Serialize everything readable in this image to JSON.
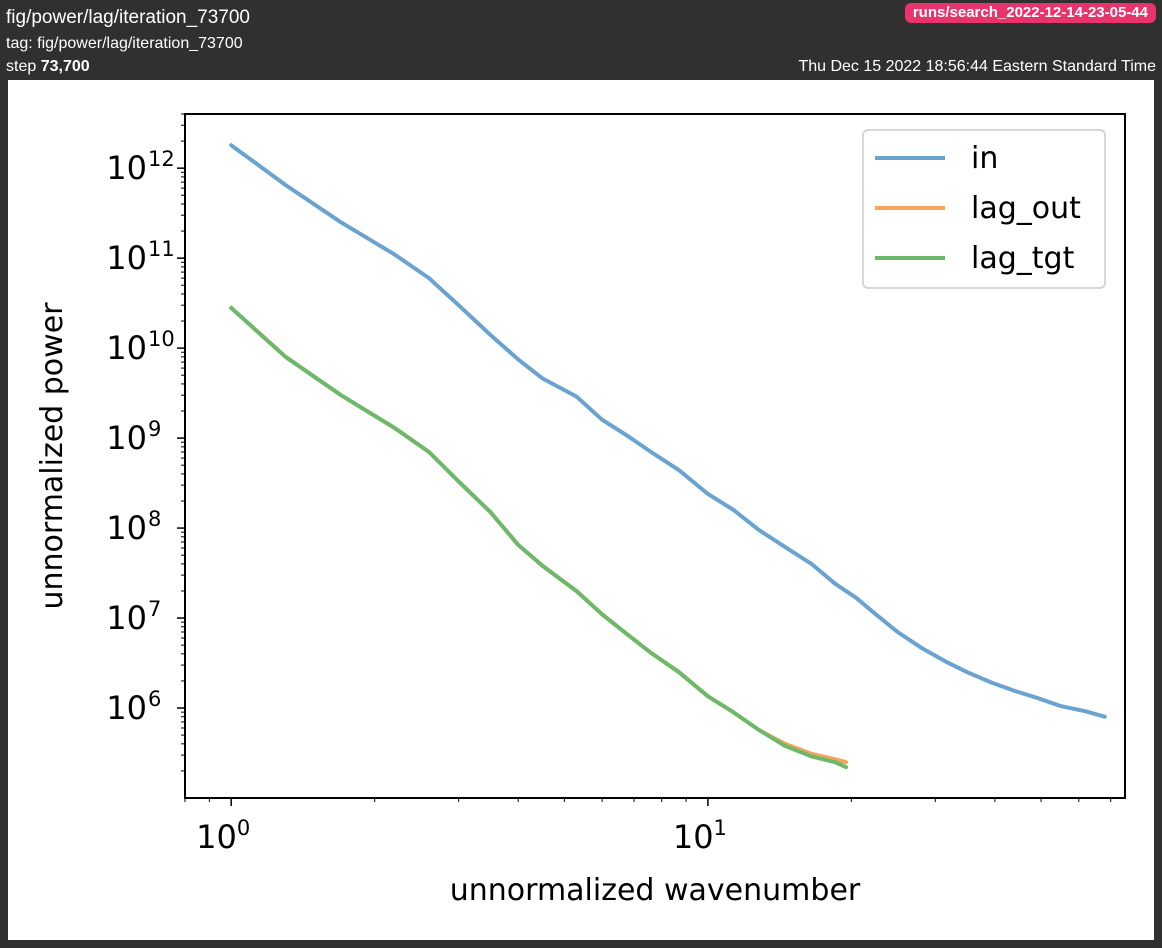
{
  "header": {
    "title": "fig/power/lag/iteration_73700",
    "tag_label": "tag:",
    "tag_value": "fig/power/lag/iteration_73700",
    "step_label": "step",
    "step_value": "73,700",
    "run_name": "runs/search_2022-12-14-23-05-44",
    "timestamp": "Thu Dec 15 2022 18:56:44 Eastern Standard Time"
  },
  "colors": {
    "in": "#6aa3cf",
    "lag_out": "#f5a45a",
    "lag_tgt": "#6db96b",
    "header_bg": "#303030",
    "badge": "#e8336d"
  },
  "chart_data": {
    "type": "line",
    "xlabel": "unnormalized wavenumber",
    "ylabel": "unnormalized power",
    "xscale": "log",
    "yscale": "log",
    "xlim": [
      0.8,
      75
    ],
    "ylim": [
      100000,
      4000000000000
    ],
    "xticks": [
      {
        "label": "10",
        "exp": "0",
        "value": 1
      },
      {
        "label": "10",
        "exp": "1",
        "value": 10
      }
    ],
    "yticks": [
      {
        "label": "10",
        "exp": "6",
        "value": 1000000
      },
      {
        "label": "10",
        "exp": "7",
        "value": 10000000
      },
      {
        "label": "10",
        "exp": "8",
        "value": 100000000
      },
      {
        "label": "10",
        "exp": "9",
        "value": 1000000000
      },
      {
        "label": "10",
        "exp": "10",
        "value": 10000000000
      },
      {
        "label": "10",
        "exp": "11",
        "value": 100000000000
      },
      {
        "label": "10",
        "exp": "12",
        "value": 1000000000000
      }
    ],
    "legend_position": "top-right",
    "grid": false,
    "series": [
      {
        "name": "in",
        "x": [
          1,
          1.3,
          1.7,
          2.2,
          2.6,
          3.0,
          3.5,
          4.0,
          4.5,
          5.3,
          6.0,
          6.8,
          7.6,
          8.7,
          10,
          11.3,
          12.8,
          14.5,
          16.5,
          18.5,
          20.4,
          22.5,
          25,
          28,
          31.5,
          35,
          39.5,
          44,
          49,
          55,
          62,
          68
        ],
        "y": [
          1800000000000,
          650000000000,
          250000000000,
          110000000000,
          60000000000,
          30000000000,
          14000000000,
          7500000000,
          4600000000,
          2900000000,
          1600000000,
          1050000000,
          700000000,
          440000000,
          240000000,
          160000000,
          95000000,
          62000000,
          40000000,
          24000000,
          17000000,
          11000000,
          7000000,
          4700000,
          3300000,
          2500000,
          1900000,
          1550000,
          1300000,
          1050000,
          920000,
          800000
        ]
      },
      {
        "name": "lag_out",
        "x": [
          1,
          1.3,
          1.7,
          2.2,
          2.6,
          3.0,
          3.5,
          4.0,
          4.5,
          5.3,
          6.0,
          6.8,
          7.6,
          8.7,
          10,
          11.3,
          12.8,
          14.5,
          16.5,
          18.5,
          19.5
        ],
        "y": [
          28000000000,
          8000000000,
          3000000000,
          1300000000,
          700000000,
          330000000,
          150000000,
          65000000,
          38000000,
          20000000,
          11000000,
          6500000,
          4100000,
          2500000,
          1350000,
          900000,
          570000,
          400000,
          310000,
          270000,
          250000
        ]
      },
      {
        "name": "lag_tgt",
        "x": [
          1,
          1.3,
          1.7,
          2.2,
          2.6,
          3.0,
          3.5,
          4.0,
          4.5,
          5.3,
          6.0,
          6.8,
          7.6,
          8.7,
          10,
          11.3,
          12.8,
          14.5,
          16.5,
          18.5,
          19.5
        ],
        "y": [
          28000000000,
          8000000000,
          3000000000,
          1300000000,
          700000000,
          330000000,
          150000000,
          65000000,
          38000000,
          20000000,
          11000000,
          6500000,
          4100000,
          2500000,
          1350000,
          900000,
          570000,
          380000,
          290000,
          250000,
          220000
        ]
      }
    ]
  }
}
